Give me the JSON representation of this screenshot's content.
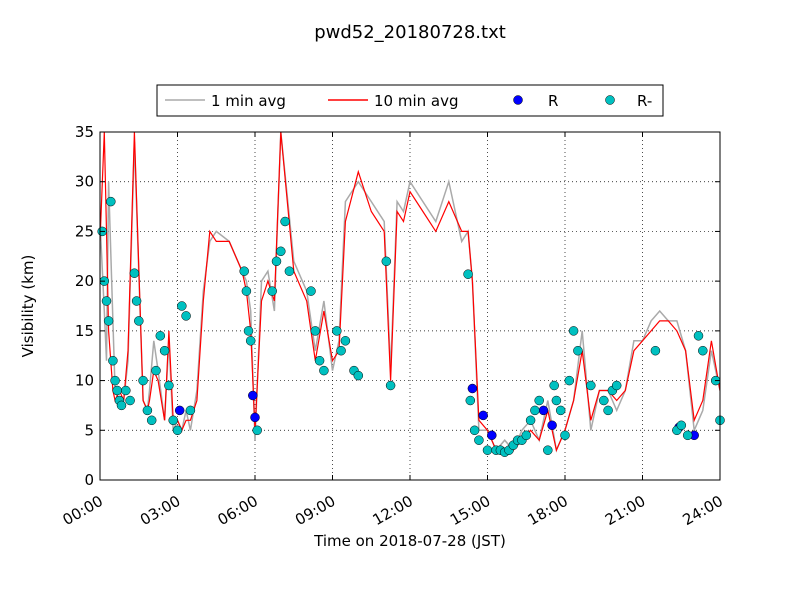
{
  "chart_data": {
    "type": "line",
    "title": "pwd52_20180728.txt",
    "xlabel": "Time on 2018-07-28 (JST)",
    "ylabel": "Visibility (km)",
    "xlim": [
      "00:00",
      "24:00"
    ],
    "ylim": [
      0,
      35
    ],
    "x_ticks": [
      "00:00",
      "03:00",
      "06:00",
      "09:00",
      "12:00",
      "15:00",
      "18:00",
      "21:00",
      "24:00"
    ],
    "y_ticks": [
      0,
      5,
      10,
      15,
      20,
      25,
      30,
      35
    ],
    "grid": true,
    "legend_position": "top, above plot",
    "series": [
      {
        "name": "1 min avg",
        "kind": "line",
        "color": "#aaaaaa",
        "x": [
          "00:00",
          "00:10",
          "00:15",
          "00:20",
          "00:30",
          "00:35",
          "00:45",
          "00:55",
          "01:05",
          "01:20",
          "01:40",
          "01:50",
          "01:55",
          "02:05",
          "02:15",
          "02:30",
          "02:40",
          "02:50",
          "03:00",
          "03:10",
          "03:20",
          "03:30",
          "03:45",
          "04:00",
          "04:15",
          "04:30",
          "05:00",
          "05:30",
          "05:40",
          "05:50",
          "06:00",
          "06:15",
          "06:30",
          "06:45",
          "07:00",
          "07:30",
          "08:00",
          "08:20",
          "08:40",
          "09:00",
          "09:15",
          "09:30",
          "10:00",
          "10:30",
          "11:00",
          "11:15",
          "11:30",
          "11:45",
          "12:00",
          "12:30",
          "13:00",
          "13:30",
          "14:00",
          "14:15",
          "14:25",
          "14:40",
          "15:00",
          "15:20",
          "15:40",
          "16:00",
          "16:20",
          "16:40",
          "17:00",
          "17:20",
          "17:40",
          "18:00",
          "18:20",
          "18:40",
          "19:00",
          "19:20",
          "19:40",
          "20:00",
          "20:20",
          "20:40",
          "21:00",
          "21:20",
          "21:40",
          "22:00",
          "22:20",
          "22:40",
          "23:00",
          "23:20",
          "23:40",
          "24:00"
        ],
        "y": [
          26,
          17,
          12,
          30,
          16,
          9,
          8,
          8,
          12,
          34,
          8,
          7,
          9,
          14,
          11,
          6,
          14,
          5,
          6,
          5,
          7,
          5,
          9,
          19,
          24,
          25,
          24,
          21,
          20,
          17,
          4,
          20,
          21,
          17,
          35,
          22,
          19,
          13,
          18,
          11,
          14,
          28,
          30,
          28,
          26,
          11,
          28,
          27,
          30,
          28,
          26,
          30,
          24,
          25,
          20,
          5,
          5,
          3,
          4,
          3,
          5,
          6,
          4,
          8,
          3,
          5,
          8,
          15,
          5,
          9,
          9,
          7,
          9,
          14,
          14,
          16,
          17,
          16,
          16,
          13,
          5,
          7,
          13,
          9
        ]
      },
      {
        "name": "10 min avg",
        "kind": "line",
        "color": "#ff0000",
        "x": [
          "00:00",
          "00:10",
          "00:15",
          "00:20",
          "00:30",
          "00:35",
          "00:45",
          "00:55",
          "01:05",
          "01:20",
          "01:40",
          "01:50",
          "01:55",
          "02:05",
          "02:15",
          "02:30",
          "02:40",
          "02:50",
          "03:00",
          "03:10",
          "03:20",
          "03:30",
          "03:45",
          "04:00",
          "04:15",
          "04:30",
          "05:00",
          "05:30",
          "05:40",
          "05:50",
          "06:00",
          "06:15",
          "06:30",
          "06:45",
          "07:00",
          "07:30",
          "08:00",
          "08:20",
          "08:40",
          "09:00",
          "09:15",
          "09:30",
          "10:00",
          "10:30",
          "11:00",
          "11:15",
          "11:30",
          "11:45",
          "12:00",
          "12:30",
          "13:00",
          "13:30",
          "14:00",
          "14:15",
          "14:25",
          "14:40",
          "15:00",
          "15:20",
          "15:40",
          "16:00",
          "16:20",
          "16:40",
          "17:00",
          "17:20",
          "17:40",
          "18:00",
          "18:20",
          "18:40",
          "19:00",
          "19:20",
          "19:40",
          "20:00",
          "20:20",
          "20:40",
          "21:00",
          "21:20",
          "21:40",
          "22:00",
          "22:20",
          "22:40",
          "23:00",
          "23:20",
          "23:40",
          "24:00"
        ],
        "y": [
          24,
          35,
          25,
          15,
          9,
          8,
          9,
          8,
          13,
          35,
          8,
          7,
          8,
          11,
          10,
          6,
          15,
          6,
          6,
          5,
          6,
          6,
          8,
          18,
          25,
          24,
          24,
          21,
          19,
          15,
          5,
          18,
          20,
          18,
          35,
          21,
          18,
          12,
          17,
          12,
          13,
          26,
          31,
          27,
          25,
          10,
          27,
          26,
          29,
          27,
          25,
          28,
          25,
          25,
          20,
          6,
          5,
          3,
          3,
          3,
          4,
          5,
          4,
          7,
          3,
          5,
          8,
          13,
          6,
          9,
          9,
          8,
          9,
          13,
          14,
          15,
          16,
          16,
          15,
          13,
          6,
          8,
          14,
          9
        ]
      },
      {
        "name": "R",
        "kind": "markers",
        "color": "#0000ff",
        "x": [
          "03:05",
          "05:55",
          "06:00",
          "14:25",
          "14:50",
          "15:10",
          "17:10",
          "17:30",
          "22:25",
          "23:00"
        ],
        "y": [
          7,
          8.5,
          6.3,
          9.2,
          6.5,
          4.5,
          7,
          5.5,
          5.3,
          4.5
        ]
      },
      {
        "name": "R-",
        "kind": "markers",
        "color": "#00c0c0",
        "x": [
          "00:05",
          "00:10",
          "00:15",
          "00:20",
          "00:25",
          "00:30",
          "00:35",
          "00:40",
          "00:45",
          "00:50",
          "01:00",
          "01:10",
          "01:20",
          "01:25",
          "01:30",
          "01:40",
          "01:50",
          "02:00",
          "02:10",
          "02:20",
          "02:30",
          "02:40",
          "02:50",
          "03:00",
          "03:10",
          "03:20",
          "03:30",
          "05:35",
          "05:40",
          "05:45",
          "05:50",
          "06:05",
          "06:40",
          "06:50",
          "07:00",
          "07:10",
          "07:20",
          "08:10",
          "08:20",
          "08:30",
          "08:40",
          "09:10",
          "09:20",
          "09:30",
          "09:50",
          "10:00",
          "11:05",
          "11:15",
          "14:15",
          "14:20",
          "14:30",
          "14:40",
          "15:00",
          "15:20",
          "15:30",
          "15:40",
          "15:50",
          "16:00",
          "16:10",
          "16:20",
          "16:30",
          "16:40",
          "16:50",
          "17:00",
          "17:20",
          "17:35",
          "17:40",
          "17:50",
          "18:00",
          "18:10",
          "18:20",
          "18:30",
          "19:00",
          "19:30",
          "19:40",
          "19:50",
          "20:00",
          "21:30",
          "22:20",
          "22:30",
          "22:45",
          "23:10",
          "23:20",
          "23:50",
          "24:00"
        ],
        "y": [
          25,
          20,
          18,
          16,
          28,
          12,
          10,
          9,
          8,
          7.5,
          9,
          8,
          20.8,
          18,
          16,
          10,
          7,
          6,
          11,
          14.5,
          13,
          9.5,
          6,
          5,
          17.5,
          16.5,
          7,
          21,
          19,
          15,
          14,
          5,
          19,
          22,
          23,
          26,
          21,
          19,
          15,
          12,
          11,
          15,
          13,
          14,
          11,
          10.5,
          22,
          9.5,
          20.7,
          8,
          5,
          4,
          3,
          3,
          3,
          2.8,
          3,
          3.5,
          4,
          4,
          4.5,
          6,
          7,
          8,
          3,
          9.5,
          8,
          7,
          4.5,
          10,
          15,
          13,
          9.5,
          8,
          7,
          9,
          9.5,
          13,
          5,
          5.5,
          4.5,
          14.5,
          13,
          10,
          6
        ]
      }
    ]
  }
}
